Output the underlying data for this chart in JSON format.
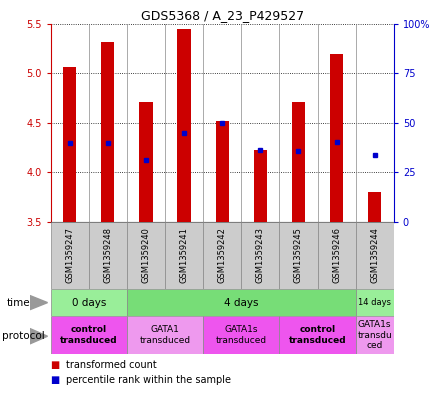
{
  "title": "GDS5368 / A_23_P429527",
  "samples": [
    "GSM1359247",
    "GSM1359248",
    "GSM1359240",
    "GSM1359241",
    "GSM1359242",
    "GSM1359243",
    "GSM1359245",
    "GSM1359246",
    "GSM1359244"
  ],
  "bar_bottoms": [
    3.5,
    3.5,
    3.5,
    3.5,
    3.5,
    3.5,
    3.5,
    3.5,
    3.5
  ],
  "bar_tops": [
    5.06,
    5.31,
    4.71,
    5.45,
    4.52,
    4.23,
    4.71,
    5.19,
    3.8
  ],
  "percentile_values": [
    4.3,
    4.3,
    4.13,
    4.4,
    4.5,
    4.23,
    4.22,
    4.31,
    4.18
  ],
  "ylim": [
    3.5,
    5.5
  ],
  "yticks": [
    3.5,
    4.0,
    4.5,
    5.0,
    5.5
  ],
  "y2ticks": [
    0,
    25,
    50,
    75,
    100
  ],
  "y2labels": [
    "0",
    "25",
    "50",
    "75",
    "100%"
  ],
  "bar_color": "#cc0000",
  "dot_color": "#0000cc",
  "time_groups": [
    {
      "label": "0 days",
      "start": 0,
      "end": 2,
      "color": "#99ee99"
    },
    {
      "label": "4 days",
      "start": 2,
      "end": 8,
      "color": "#77dd77"
    },
    {
      "label": "14 days",
      "start": 8,
      "end": 9,
      "color": "#99ee99"
    }
  ],
  "protocol_groups": [
    {
      "label": "control\ntransduced",
      "start": 0,
      "end": 2,
      "color": "#ee55ee",
      "bold": true
    },
    {
      "label": "GATA1\ntransduced",
      "start": 2,
      "end": 4,
      "color": "#ee99ee",
      "bold": false
    },
    {
      "label": "GATA1s\ntransduced",
      "start": 4,
      "end": 6,
      "color": "#ee55ee",
      "bold": false
    },
    {
      "label": "control\ntransduced",
      "start": 6,
      "end": 8,
      "color": "#ee55ee",
      "bold": true
    },
    {
      "label": "GATA1s\ntransdu\nced",
      "start": 8,
      "end": 9,
      "color": "#ee99ee",
      "bold": false
    }
  ],
  "bg_color": "#ffffff",
  "axis_left_color": "#cc0000",
  "axis_right_color": "#0000cc",
  "label_bg": "#cccccc"
}
